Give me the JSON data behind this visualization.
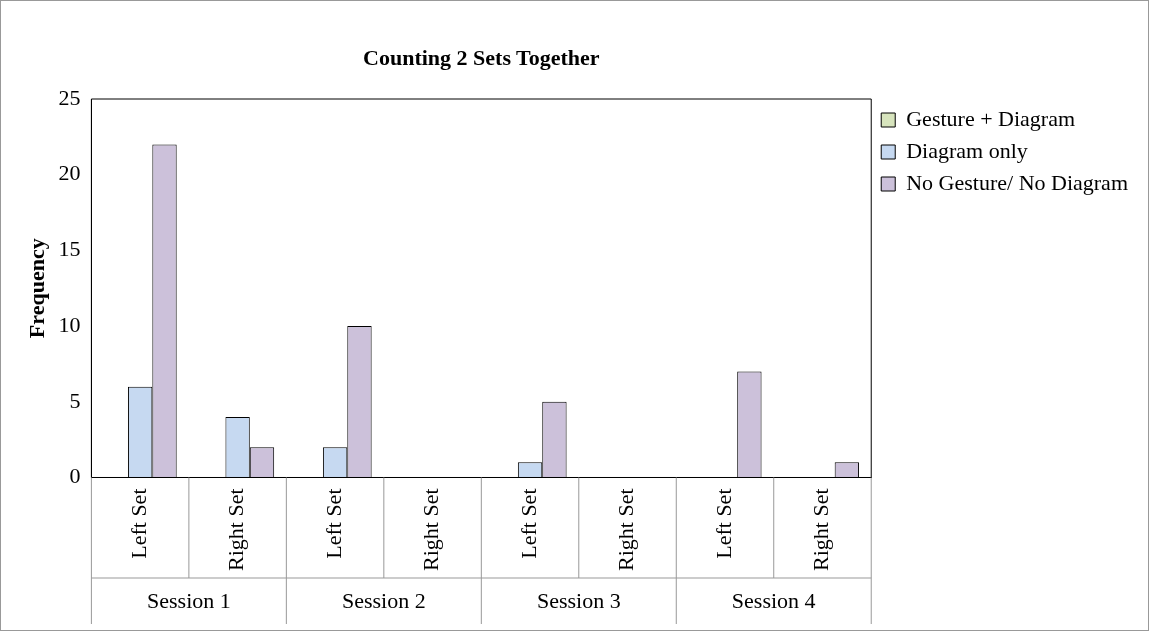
{
  "chart_data": {
    "type": "bar",
    "title": "Counting 2 Sets Together",
    "ylabel": "Frequency",
    "categories": [
      "Left Set",
      "Right Set",
      "Left Set",
      "Right Set",
      "Left Set",
      "Right Set",
      "Left Set",
      "Right Set"
    ],
    "annotations": [
      "Session 1",
      "Session 2",
      "Session 3",
      "Session 4"
    ],
    "series": [
      {
        "name": "Gesture + Diagram",
        "color": "#d7e4bd",
        "values": [
          0,
          0,
          0,
          0,
          0,
          0,
          0,
          0
        ]
      },
      {
        "name": "Diagram only",
        "color": "#c6d9f1",
        "values": [
          6,
          4,
          2,
          0,
          1,
          0,
          0,
          0
        ]
      },
      {
        "name": "No Gesture/ No Diagram",
        "color": "#ccc1da",
        "values": [
          22,
          2,
          10,
          0,
          5,
          0,
          7,
          1
        ]
      }
    ],
    "ylim": [
      0,
      25
    ],
    "yticks": [
      0,
      5,
      10,
      15,
      20,
      25
    ],
    "grid": false,
    "legend": "right"
  }
}
